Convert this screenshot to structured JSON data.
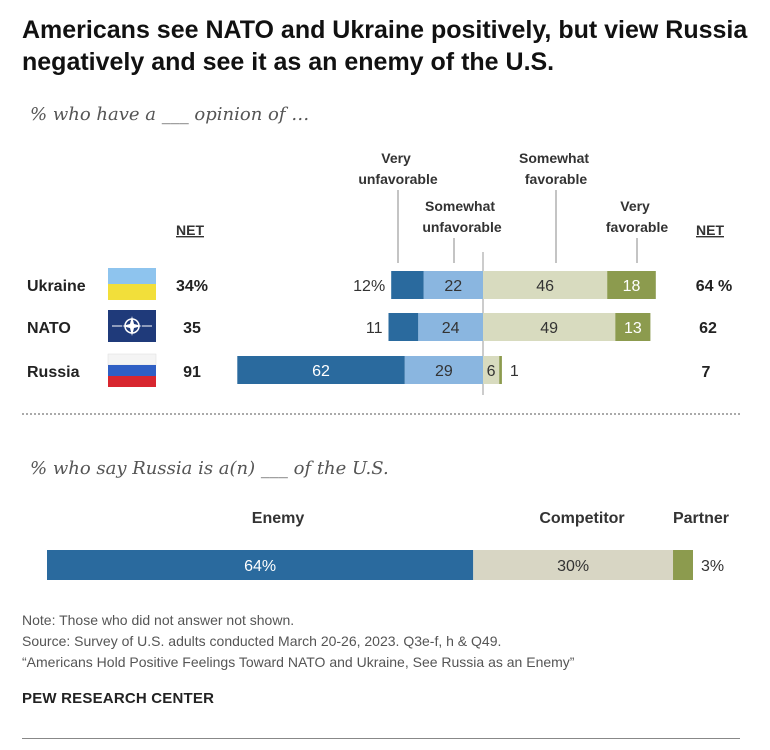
{
  "title": "Americans see NATO and Ukraine positively, but view Russia negatively and see it as an enemy of the U.S.",
  "chart_data": [
    {
      "type": "bar",
      "orientation": "horizontal",
      "stacked": "diverging",
      "subtitle": "% who have a ___ opinion of …",
      "categories": [
        "Ukraine",
        "NATO",
        "Russia"
      ],
      "icons": [
        "ukraine-flag-icon",
        "nato-flag-icon",
        "russia-flag-icon"
      ],
      "net_label": "NET",
      "net_unfavorable": [
        "34%",
        "35",
        "91"
      ],
      "net_favorable": [
        "64 %",
        "62",
        "7"
      ],
      "series": [
        {
          "name": "Very unfavorable",
          "side": "unfavorable",
          "color": "#2a6a9e",
          "values": [
            12,
            11,
            62
          ],
          "labels": [
            "12%",
            "11",
            "62"
          ]
        },
        {
          "name": "Somewhat unfavorable",
          "side": "unfavorable",
          "color": "#8ab6e0",
          "values": [
            22,
            24,
            29
          ],
          "labels": [
            "22",
            "24",
            "29"
          ]
        },
        {
          "name": "Somewhat favorable",
          "side": "favorable",
          "color": "#d8dbbf",
          "values": [
            46,
            49,
            6
          ],
          "labels": [
            "46",
            "49",
            "6"
          ]
        },
        {
          "name": "Very favorable",
          "side": "favorable",
          "color": "#8c9b4e",
          "values": [
            18,
            13,
            1
          ],
          "labels": [
            "18",
            "13",
            "1"
          ]
        }
      ]
    },
    {
      "type": "bar",
      "orientation": "horizontal",
      "stacked": "full",
      "subtitle": "% who say Russia is a(n) ___ of the U.S.",
      "series": [
        {
          "name": "Enemy",
          "color": "#2a6a9e",
          "value": 64,
          "label": "64%"
        },
        {
          "name": "Competitor",
          "color": "#d8d6c4",
          "value": 30,
          "label": "30%"
        },
        {
          "name": "Partner",
          "color": "#8c9b4e",
          "value": 3,
          "label": "3%"
        }
      ]
    }
  ],
  "colors": {
    "label_light": "#ffffff",
    "label_dark": "#333333"
  },
  "footer": {
    "note": "Note: Those who did not answer not shown.",
    "source": "Source: Survey of U.S. adults conducted March 20-26, 2023. Q3e-f, h & Q49.",
    "report": "“Americans Hold Positive Feelings Toward NATO and Ukraine, See Russia as an Enemy”",
    "brand": "PEW RESEARCH CENTER"
  }
}
